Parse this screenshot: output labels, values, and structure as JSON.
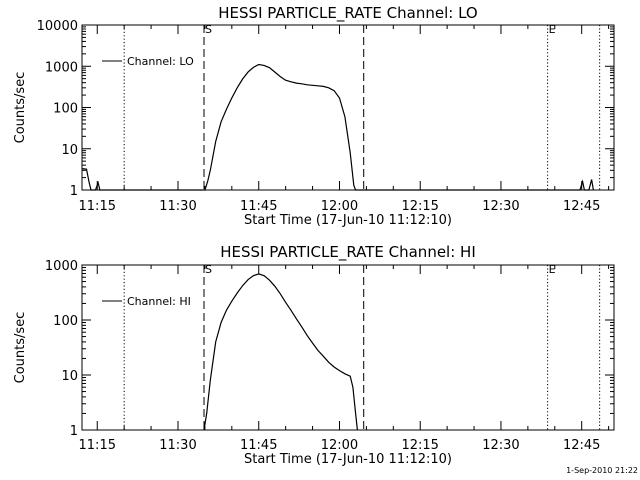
{
  "footer_date": "1-Sep-2010 21:22",
  "chart_data": [
    {
      "type": "line",
      "title": "HESSI PARTICLE_RATE Channel: LO",
      "xlabel": "Start Time (17-Jun-10 11:12:10)",
      "ylabel": "Counts/sec",
      "yscale": "log",
      "ylim": [
        1,
        10000
      ],
      "xlim": [
        "11:12:10",
        "12:51:00"
      ],
      "x_ticks": [
        "11:15",
        "11:30",
        "11:45",
        "12:00",
        "12:15",
        "12:30",
        "12:45"
      ],
      "y_ticks": [
        "1",
        "10",
        "100",
        "1000",
        "10000"
      ],
      "legend": "top-left",
      "grid": false,
      "series": [
        {
          "name": "Channel: LO",
          "points": [
            [
              "11:12:10",
              3.3
            ],
            [
              "11:13:00",
              3.2
            ],
            [
              "11:13:30",
              1.5
            ],
            [
              "11:13:50",
              0.8
            ],
            [
              "11:14:40",
              0.8
            ],
            [
              "11:15:10",
              1.5
            ],
            [
              "11:15:30",
              0.8
            ],
            [
              "11:35:00",
              0.8
            ],
            [
              "11:35:30",
              1.6
            ],
            [
              "11:36:00",
              3
            ],
            [
              "11:37:00",
              15
            ],
            [
              "11:38:00",
              45
            ],
            [
              "11:39:00",
              90
            ],
            [
              "11:40:00",
              170
            ],
            [
              "11:41:00",
              300
            ],
            [
              "11:42:00",
              490
            ],
            [
              "11:43:00",
              720
            ],
            [
              "11:44:00",
              940
            ],
            [
              "11:45:00",
              1100
            ],
            [
              "11:46:00",
              1050
            ],
            [
              "11:47:00",
              920
            ],
            [
              "11:48:00",
              720
            ],
            [
              "11:49:00",
              560
            ],
            [
              "11:50:00",
              460
            ],
            [
              "11:51:00",
              420
            ],
            [
              "11:52:00",
              390
            ],
            [
              "11:53:00",
              375
            ],
            [
              "11:54:00",
              355
            ],
            [
              "11:55:00",
              345
            ],
            [
              "11:56:00",
              335
            ],
            [
              "11:57:00",
              325
            ],
            [
              "11:58:00",
              300
            ],
            [
              "11:59:00",
              255
            ],
            [
              "12:00:00",
              170
            ],
            [
              "12:01:00",
              60
            ],
            [
              "12:02:00",
              8
            ],
            [
              "12:02:40",
              1.3
            ],
            [
              "12:03:00",
              0.8
            ],
            [
              "12:44:40",
              0.8
            ],
            [
              "12:45:10",
              1.6
            ],
            [
              "12:45:30",
              0.8
            ],
            [
              "12:46:20",
              0.8
            ],
            [
              "12:46:50",
              1.8
            ],
            [
              "12:47:10",
              0.8
            ]
          ]
        }
      ],
      "markers": [
        {
          "label": "",
          "time": "11:12:10",
          "style": "solid"
        },
        {
          "label": "",
          "time": "11:20:00",
          "style": "dotted"
        },
        {
          "label": "S",
          "time": "11:34:50",
          "style": "dashed"
        },
        {
          "label": "",
          "time": "12:04:30",
          "style": "dashed"
        },
        {
          "label": "E",
          "time": "12:38:40",
          "style": "dotted"
        },
        {
          "label": "",
          "time": "12:48:20",
          "style": "dotted"
        }
      ]
    },
    {
      "type": "line",
      "title": "HESSI PARTICLE_RATE Channel: HI",
      "xlabel": "Start Time (17-Jun-10 11:12:10)",
      "ylabel": "Counts/sec",
      "yscale": "log",
      "ylim": [
        1,
        1000
      ],
      "xlim": [
        "11:12:10",
        "12:51:00"
      ],
      "x_ticks": [
        "11:15",
        "11:30",
        "11:45",
        "12:00",
        "12:15",
        "12:30",
        "12:45"
      ],
      "y_ticks": [
        "1",
        "10",
        "100",
        "1000"
      ],
      "legend": "top-left",
      "grid": false,
      "series": [
        {
          "name": "Channel: HI",
          "points": [
            [
              "11:34:50",
              0.9
            ],
            [
              "11:35:20",
              2
            ],
            [
              "11:36:00",
              8
            ],
            [
              "11:37:00",
              40
            ],
            [
              "11:38:00",
              90
            ],
            [
              "11:39:00",
              150
            ],
            [
              "11:40:00",
              220
            ],
            [
              "11:41:00",
              310
            ],
            [
              "11:42:00",
              420
            ],
            [
              "11:43:00",
              540
            ],
            [
              "11:44:00",
              640
            ],
            [
              "11:45:00",
              690
            ],
            [
              "11:46:00",
              640
            ],
            [
              "11:47:00",
              530
            ],
            [
              "11:48:00",
              410
            ],
            [
              "11:49:00",
              300
            ],
            [
              "11:50:00",
              210
            ],
            [
              "11:51:00",
              150
            ],
            [
              "11:52:00",
              105
            ],
            [
              "11:53:00",
              75
            ],
            [
              "11:54:00",
              52
            ],
            [
              "11:55:00",
              38
            ],
            [
              "11:56:00",
              28
            ],
            [
              "11:57:00",
              22
            ],
            [
              "11:58:00",
              17
            ],
            [
              "11:59:00",
              14
            ],
            [
              "12:00:00",
              12
            ],
            [
              "12:01:00",
              10.5
            ],
            [
              "12:02:00",
              9.5
            ],
            [
              "12:02:30",
              6
            ],
            [
              "12:03:00",
              2
            ],
            [
              "12:03:20",
              0.9
            ]
          ]
        }
      ],
      "markers": [
        {
          "label": "",
          "time": "11:12:10",
          "style": "solid"
        },
        {
          "label": "",
          "time": "11:20:00",
          "style": "dotted"
        },
        {
          "label": "S",
          "time": "11:34:50",
          "style": "dashed"
        },
        {
          "label": "",
          "time": "12:04:30",
          "style": "dashed"
        },
        {
          "label": "E",
          "time": "12:38:40",
          "style": "dotted"
        },
        {
          "label": "",
          "time": "12:48:20",
          "style": "dotted"
        }
      ]
    }
  ]
}
